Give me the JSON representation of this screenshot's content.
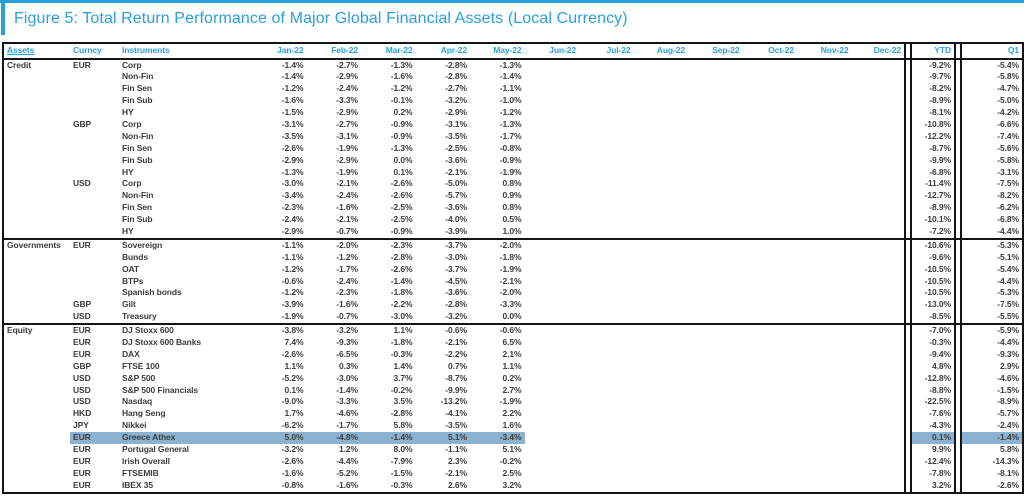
{
  "title": "Figure 5: Total Return Performance of Major Global Financial Assets (Local Currency)",
  "colors": {
    "accent": "#2aa0db",
    "highlight": "#8bb3d1",
    "border": "#141414",
    "text": "#3c3c3c"
  },
  "table": {
    "headers": {
      "assets": "Assets",
      "currency": "Curncy",
      "instruments": "Instruments",
      "months": [
        "Jan-22",
        "Feb-22",
        "Mar-22",
        "Apr-22",
        "May-22",
        "Jun-22",
        "Jul-22",
        "Aug-22",
        "Sep-22",
        "Oct-22",
        "Nov-22",
        "Dec-22"
      ],
      "ytd": "YTD",
      "q1": "Q1"
    },
    "sections": [
      {
        "name": "Credit",
        "rows": [
          {
            "currency": "EUR",
            "instrument": "Corp",
            "values": [
              "-1.4%",
              "-2.7%",
              "-1.3%",
              "-2.8%",
              "-1.3%"
            ],
            "ytd": "-9.2%",
            "q1": "-5.4%"
          },
          {
            "currency": "",
            "instrument": "Non-Fin",
            "values": [
              "-1.4%",
              "-2.9%",
              "-1.6%",
              "-2.8%",
              "-1.4%"
            ],
            "ytd": "-9.7%",
            "q1": "-5.8%"
          },
          {
            "currency": "",
            "instrument": "Fin Sen",
            "values": [
              "-1.2%",
              "-2.4%",
              "-1.2%",
              "-2.7%",
              "-1.1%"
            ],
            "ytd": "-8.2%",
            "q1": "-4.7%"
          },
          {
            "currency": "",
            "instrument": "Fin Sub",
            "values": [
              "-1.6%",
              "-3.3%",
              "-0.1%",
              "-3.2%",
              "-1.0%"
            ],
            "ytd": "-8.9%",
            "q1": "-5.0%"
          },
          {
            "currency": "",
            "instrument": "HY",
            "values": [
              "-1.5%",
              "-2.9%",
              "0.2%",
              "-2.9%",
              "-1.2%"
            ],
            "ytd": "-8.1%",
            "q1": "-4.2%"
          },
          {
            "currency": "GBP",
            "instrument": "Corp",
            "values": [
              "-3.1%",
              "-2.7%",
              "-0.9%",
              "-3.1%",
              "-1.3%"
            ],
            "ytd": "-10.8%",
            "q1": "-6.6%"
          },
          {
            "currency": "",
            "instrument": "Non-Fin",
            "values": [
              "-3.5%",
              "-3.1%",
              "-0.9%",
              "-3.5%",
              "-1.7%"
            ],
            "ytd": "-12.2%",
            "q1": "-7.4%"
          },
          {
            "currency": "",
            "instrument": "Fin Sen",
            "values": [
              "-2.6%",
              "-1.9%",
              "-1.3%",
              "-2.5%",
              "-0.8%"
            ],
            "ytd": "-8.7%",
            "q1": "-5.6%"
          },
          {
            "currency": "",
            "instrument": "Fin Sub",
            "values": [
              "-2.9%",
              "-2.9%",
              "0.0%",
              "-3.6%",
              "-0.9%"
            ],
            "ytd": "-9.9%",
            "q1": "-5.8%"
          },
          {
            "currency": "",
            "instrument": "HY",
            "values": [
              "-1.3%",
              "-1.9%",
              "0.1%",
              "-2.1%",
              "-1.9%"
            ],
            "ytd": "-6.8%",
            "q1": "-3.1%"
          },
          {
            "currency": "USD",
            "instrument": "Corp",
            "values": [
              "-3.0%",
              "-2.1%",
              "-2.6%",
              "-5.0%",
              "0.8%"
            ],
            "ytd": "-11.4%",
            "q1": "-7.5%"
          },
          {
            "currency": "",
            "instrument": "Non-Fin",
            "values": [
              "-3.4%",
              "-2.4%",
              "-2.6%",
              "-5.7%",
              "0.9%"
            ],
            "ytd": "-12.7%",
            "q1": "-8.2%"
          },
          {
            "currency": "",
            "instrument": "Fin Sen",
            "values": [
              "-2.3%",
              "-1.6%",
              "-2.5%",
              "-3.6%",
              "0.8%"
            ],
            "ytd": "-8.9%",
            "q1": "-6.2%"
          },
          {
            "currency": "",
            "instrument": "Fin Sub",
            "values": [
              "-2.4%",
              "-2.1%",
              "-2.5%",
              "-4.0%",
              "0.5%"
            ],
            "ytd": "-10.1%",
            "q1": "-6.8%"
          },
          {
            "currency": "",
            "instrument": "HY",
            "values": [
              "-2.9%",
              "-0.7%",
              "-0.9%",
              "-3.9%",
              "1.0%"
            ],
            "ytd": "-7.2%",
            "q1": "-4.4%"
          }
        ]
      },
      {
        "name": "Governments",
        "rows": [
          {
            "currency": "EUR",
            "instrument": "Sovereign",
            "values": [
              "-1.1%",
              "-2.0%",
              "-2.3%",
              "-3.7%",
              "-2.0%"
            ],
            "ytd": "-10.6%",
            "q1": "-5.3%"
          },
          {
            "currency": "",
            "instrument": "Bunds",
            "values": [
              "-1.1%",
              "-1.2%",
              "-2.8%",
              "-3.0%",
              "-1.8%"
            ],
            "ytd": "-9.6%",
            "q1": "-5.1%"
          },
          {
            "currency": "",
            "instrument": "OAT",
            "values": [
              "-1.2%",
              "-1.7%",
              "-2.6%",
              "-3.7%",
              "-1.9%"
            ],
            "ytd": "-10.5%",
            "q1": "-5.4%"
          },
          {
            "currency": "",
            "instrument": "BTPs",
            "values": [
              "-0.6%",
              "-2.4%",
              "-1.4%",
              "-4.5%",
              "-2.1%"
            ],
            "ytd": "-10.5%",
            "q1": "-4.4%"
          },
          {
            "currency": "",
            "instrument": "Spanish bonds",
            "values": [
              "-1.2%",
              "-2.3%",
              "-1.8%",
              "-3.6%",
              "-2.0%"
            ],
            "ytd": "-10.5%",
            "q1": "-5.3%"
          },
          {
            "currency": "GBP",
            "instrument": "Gilt",
            "values": [
              "-3.9%",
              "-1.6%",
              "-2.2%",
              "-2.8%",
              "-3.3%"
            ],
            "ytd": "-13.0%",
            "q1": "-7.5%"
          },
          {
            "currency": "USD",
            "instrument": "Treasury",
            "values": [
              "-1.9%",
              "-0.7%",
              "-3.0%",
              "-3.2%",
              "0.0%"
            ],
            "ytd": "-8.5%",
            "q1": "-5.5%"
          }
        ]
      },
      {
        "name": "Equity",
        "rows": [
          {
            "currency": "EUR",
            "instrument": "DJ Stoxx 600",
            "values": [
              "-3.8%",
              "-3.2%",
              "1.1%",
              "-0.6%",
              "-0.6%"
            ],
            "ytd": "-7.0%",
            "q1": "-5.9%"
          },
          {
            "currency": "EUR",
            "instrument": "DJ Stoxx 600 Banks",
            "values": [
              "7.4%",
              "-9.3%",
              "-1.8%",
              "-2.1%",
              "6.5%"
            ],
            "ytd": "-0.3%",
            "q1": "-4.4%"
          },
          {
            "currency": "EUR",
            "instrument": "DAX",
            "values": [
              "-2.6%",
              "-6.5%",
              "-0.3%",
              "-2.2%",
              "2.1%"
            ],
            "ytd": "-9.4%",
            "q1": "-9.3%"
          },
          {
            "currency": "GBP",
            "instrument": "FTSE 100",
            "values": [
              "1.1%",
              "0.3%",
              "1.4%",
              "0.7%",
              "1.1%"
            ],
            "ytd": "4.8%",
            "q1": "2.9%"
          },
          {
            "currency": "USD",
            "instrument": "S&P 500",
            "values": [
              "-5.2%",
              "-3.0%",
              "3.7%",
              "-8.7%",
              "0.2%"
            ],
            "ytd": "-12.8%",
            "q1": "-4.6%"
          },
          {
            "currency": "USD",
            "instrument": "S&P 500 Financials",
            "values": [
              "0.1%",
              "-1.4%",
              "-0.2%",
              "-9.9%",
              "2.7%"
            ],
            "ytd": "-8.8%",
            "q1": "-1.5%"
          },
          {
            "currency": "USD",
            "instrument": "Nasdaq",
            "values": [
              "-9.0%",
              "-3.3%",
              "3.5%",
              "-13.2%",
              "-1.9%"
            ],
            "ytd": "-22.5%",
            "q1": "-8.9%"
          },
          {
            "currency": "HKD",
            "instrument": "Hang Seng",
            "values": [
              "1.7%",
              "-4.6%",
              "-2.8%",
              "-4.1%",
              "2.2%"
            ],
            "ytd": "-7.6%",
            "q1": "-5.7%"
          },
          {
            "currency": "JPY",
            "instrument": "Nikkei",
            "values": [
              "-6.2%",
              "-1.7%",
              "5.8%",
              "-3.5%",
              "1.6%"
            ],
            "ytd": "-4.3%",
            "q1": "-2.4%"
          },
          {
            "currency": "EUR",
            "instrument": "Greece Athex",
            "values": [
              "5.0%",
              "-4.8%",
              "-1.4%",
              "5.1%",
              "-3.4%"
            ],
            "ytd": "0.1%",
            "q1": "-1.4%",
            "highlight": true
          },
          {
            "currency": "EUR",
            "instrument": "Portugal General",
            "values": [
              "-3.2%",
              "1.2%",
              "8.0%",
              "-1.1%",
              "5.1%"
            ],
            "ytd": "9.9%",
            "q1": "5.8%"
          },
          {
            "currency": "EUR",
            "instrument": "Irish Overall",
            "values": [
              "-2.6%",
              "-4.4%",
              "-7.9%",
              "2.3%",
              "-0.2%"
            ],
            "ytd": "-12.4%",
            "q1": "-14.3%"
          },
          {
            "currency": "EUR",
            "instrument": "FTSEMIB",
            "values": [
              "-1.6%",
              "-5.2%",
              "-1.5%",
              "-2.1%",
              "2.5%"
            ],
            "ytd": "-7.8%",
            "q1": "-8.1%"
          },
          {
            "currency": "EUR",
            "instrument": "IBEX 35",
            "values": [
              "-0.8%",
              "-1.6%",
              "-0.3%",
              "2.6%",
              "3.2%"
            ],
            "ytd": "3.2%",
            "q1": "-2.6%"
          }
        ]
      }
    ]
  }
}
